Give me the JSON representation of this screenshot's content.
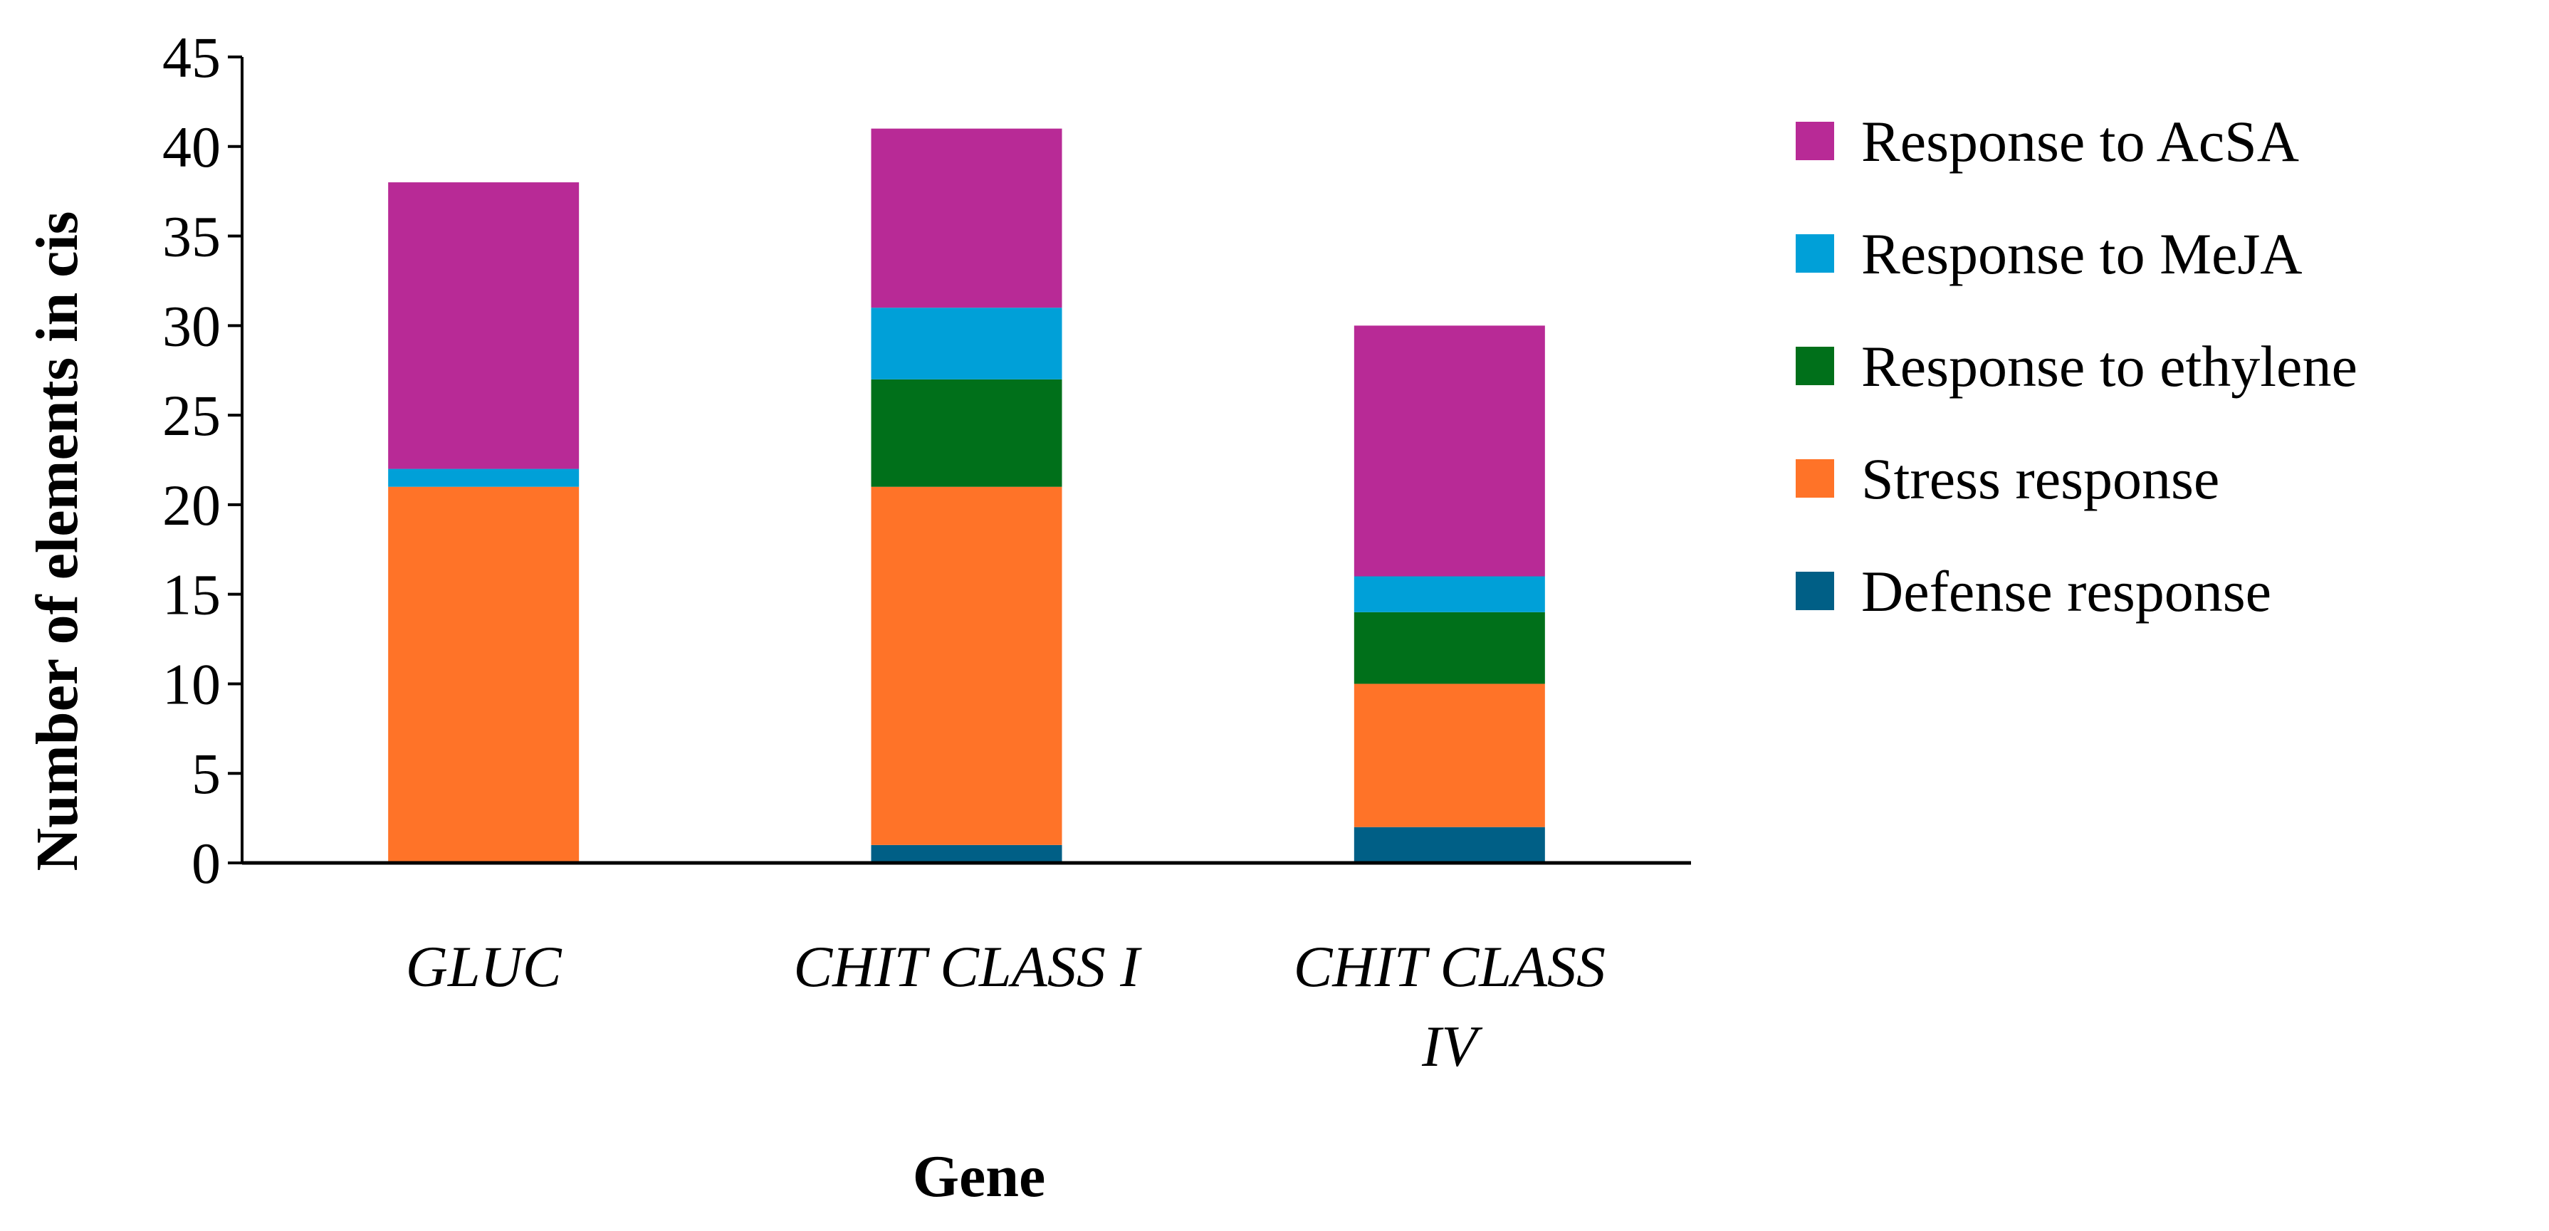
{
  "chart_data": {
    "type": "bar",
    "stacked": true,
    "title": "",
    "xlabel": "Gene",
    "ylabel": "Number of elements in cis",
    "ylim": [
      0,
      45
    ],
    "yticks": [
      0,
      5,
      10,
      15,
      20,
      25,
      30,
      35,
      40,
      45
    ],
    "categories": [
      [
        "GLUC"
      ],
      [
        "CHIT CLASS I"
      ],
      [
        "CHIT CLASS",
        "IV"
      ]
    ],
    "series": [
      {
        "name": "Defense response",
        "color": "#005f86",
        "values": [
          0,
          1,
          2
        ]
      },
      {
        "name": "Stress response",
        "color": "#ff7328",
        "values": [
          21,
          20,
          8
        ]
      },
      {
        "name": "Response to ethylene",
        "color": "#00701a",
        "values": [
          0,
          6,
          4
        ]
      },
      {
        "name": "Response to MeJA",
        "color": "#00a0d8",
        "values": [
          1,
          4,
          2
        ]
      },
      {
        "name": "Response to AcSA",
        "color": "#b82a96",
        "values": [
          16,
          10,
          14
        ]
      }
    ],
    "legend_position": "right"
  }
}
